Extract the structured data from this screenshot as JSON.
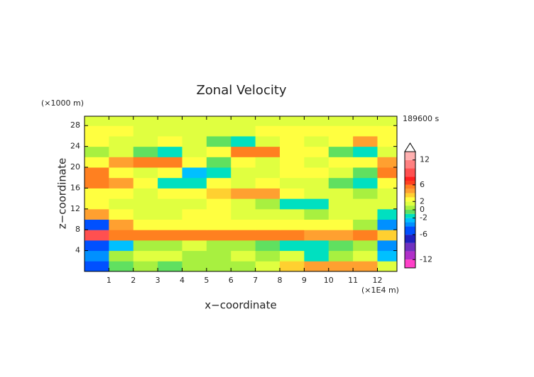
{
  "chart_data": {
    "type": "heatmap",
    "title": "Zonal Velocity",
    "x_label": "x−coordinate",
    "y_label": "z−coordinate",
    "x_unit": "(×1E4 m)",
    "y_unit": "(×1000 m)",
    "time_label": "189600 s",
    "xlim": [
      0,
      12.8
    ],
    "ylim": [
      0,
      29.8
    ],
    "xticks": [
      1,
      2,
      3,
      4,
      5,
      6,
      7,
      8,
      9,
      10,
      11,
      12
    ],
    "yticks": [
      4,
      8,
      12,
      16,
      20,
      24,
      28
    ],
    "x": [
      0.5,
      1.5,
      2.5,
      3.5,
      4.5,
      5.5,
      6.5,
      7.5,
      8.5,
      9.5,
      10.5,
      11.5,
      12.5
    ],
    "y": [
      1,
      3,
      5,
      7,
      9,
      11,
      13,
      15,
      17,
      19,
      21,
      23,
      25,
      27,
      29
    ],
    "z": [
      [
        -5,
        -1,
        0,
        -1,
        0,
        0,
        0,
        1,
        3,
        4,
        4,
        4,
        1
      ],
      [
        -4,
        0,
        1,
        1,
        0,
        0,
        1,
        0,
        1,
        -2,
        0,
        1,
        -3
      ],
      [
        -6,
        -3,
        0,
        0,
        1,
        0,
        0,
        -1,
        -2,
        -2,
        -1,
        0,
        -4
      ],
      [
        8,
        5,
        5,
        5,
        5,
        5,
        5,
        5,
        5,
        4,
        4,
        5,
        3
      ],
      [
        -5,
        4,
        2,
        2,
        2,
        2,
        2,
        2,
        2,
        2,
        2,
        0,
        -4
      ],
      [
        4,
        2,
        1,
        1,
        2,
        2,
        1,
        1,
        1,
        0,
        1,
        1,
        -2
      ],
      [
        2,
        1,
        1,
        1,
        1,
        2,
        1,
        0,
        -2,
        -2,
        1,
        1,
        1
      ],
      [
        2,
        2,
        1,
        2,
        2,
        3,
        4,
        4,
        2,
        1,
        1,
        0,
        1
      ],
      [
        5,
        4,
        2,
        -2,
        -2,
        2,
        1,
        2,
        1,
        1,
        -1,
        -2,
        2
      ],
      [
        5,
        2,
        1,
        2,
        -3,
        -2,
        1,
        1,
        2,
        2,
        1,
        -1,
        5
      ],
      [
        2,
        4,
        5,
        5,
        2,
        -1,
        2,
        1,
        2,
        1,
        2,
        2,
        4
      ],
      [
        0,
        1,
        -1,
        -2,
        1,
        2,
        5,
        5,
        2,
        2,
        -1,
        -2,
        1
      ],
      [
        2,
        1,
        1,
        2,
        1,
        -1,
        -2,
        1,
        2,
        1,
        2,
        4,
        2
      ],
      [
        2,
        2,
        1,
        1,
        1,
        1,
        1,
        2,
        2,
        2,
        2,
        2,
        2
      ],
      [
        1,
        1,
        1,
        1,
        1,
        1,
        1,
        1,
        1,
        1,
        1,
        1,
        1
      ]
    ],
    "colorbar": {
      "levels": [
        -14,
        -12,
        -10,
        -8,
        -6,
        -4,
        -3,
        -2,
        -1,
        0,
        1,
        2,
        3,
        4,
        5,
        6,
        7,
        8,
        10,
        12,
        14
      ],
      "colors": [
        "#ff40c8",
        "#b030c8",
        "#7030c0",
        "#2020c0",
        "#0050ff",
        "#0090ff",
        "#00c0ff",
        "#00e0c0",
        "#60e060",
        "#a8f040",
        "#e0ff40",
        "#ffff40",
        "#ffd030",
        "#ffa030",
        "#ff8020",
        "#ff4020",
        "#ff2020",
        "#ff5050",
        "#ff8080",
        "#ffb0b0"
      ],
      "ticks": [
        12,
        6,
        2,
        0,
        -2,
        -6,
        -12
      ]
    }
  }
}
